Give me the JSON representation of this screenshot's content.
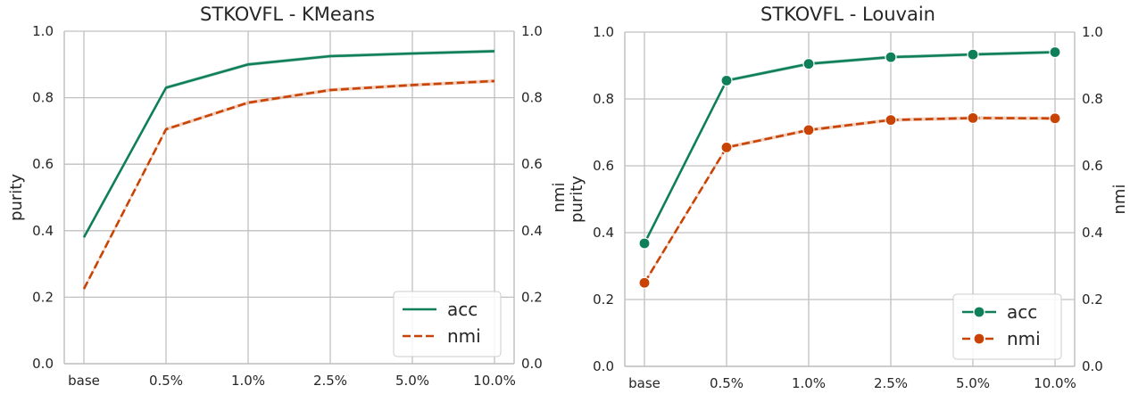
{
  "chart_data": [
    {
      "type": "line",
      "title": "STKOVFL - KMeans",
      "categories": [
        "base",
        "0.5%",
        "1.0%",
        "2.5%",
        "5.0%",
        "10.0%"
      ],
      "ylabel_left": "purity",
      "ylabel_right": "nmi",
      "ylim": [
        0,
        1.0
      ],
      "yticks": [
        "0.0",
        "0.2",
        "0.4",
        "0.6",
        "0.8",
        "1.0"
      ],
      "markers": false,
      "series": [
        {
          "name": "acc",
          "values": [
            0.38,
            0.83,
            0.9,
            0.925,
            0.933,
            0.94
          ],
          "color": "#0f7f5a",
          "dash": false
        },
        {
          "name": "nmi",
          "values": [
            0.225,
            0.705,
            0.785,
            0.823,
            0.838,
            0.85
          ],
          "color": "#c84304",
          "dash": true
        }
      ],
      "legend": "lower-right"
    },
    {
      "type": "line",
      "title": "STKOVFL - Louvain",
      "categories": [
        "base",
        "0.5%",
        "1.0%",
        "2.5%",
        "5.0%",
        "10.0%"
      ],
      "ylabel_left": "purity",
      "ylabel_right": "nmi",
      "ylim": [
        0,
        1.0
      ],
      "yticks": [
        "0.0",
        "0.2",
        "0.4",
        "0.6",
        "0.8",
        "1.0"
      ],
      "markers": true,
      "series": [
        {
          "name": "acc",
          "values": [
            0.368,
            0.855,
            0.905,
            0.925,
            0.933,
            0.94
          ],
          "color": "#0f7f5a",
          "dash": false
        },
        {
          "name": "nmi",
          "values": [
            0.25,
            0.655,
            0.707,
            0.737,
            0.743,
            0.742
          ],
          "color": "#c84304",
          "dash": true
        }
      ],
      "legend": "lower-right"
    }
  ]
}
